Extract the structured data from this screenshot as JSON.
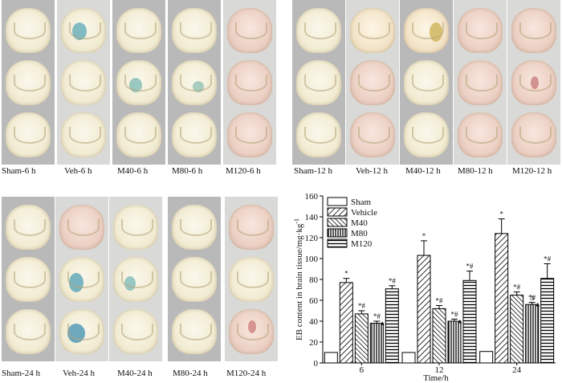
{
  "panels": {
    "top_left": {
      "captions": [
        "Sham-6 h",
        "Veh-6 h",
        "M40-6 h",
        "M80-6 h",
        "M120-6 h"
      ]
    },
    "top_right": {
      "captions": [
        "Sham-12 h",
        "Veh-12 h",
        "M40-12 h",
        "M80-12 h",
        "M120-12 h"
      ]
    },
    "bottom_left": {
      "captions": [
        "Sham-24 h",
        "Veh-24 h",
        "M40-24 h",
        "M80-24 h",
        "M120-24 h"
      ]
    }
  },
  "chart_data": {
    "type": "bar",
    "ylabel": "EB content in brain tissue/mg·kg",
    "ylabel_superscript": "-1",
    "xlabel": "Time/h",
    "categories": [
      "6",
      "12",
      "24"
    ],
    "ylim": [
      0,
      160
    ],
    "yticks": [
      0,
      20,
      40,
      60,
      80,
      100,
      120,
      140,
      160
    ],
    "series": [
      {
        "name": "Sham",
        "values": [
          10,
          10,
          11
        ],
        "errors": [
          0,
          0,
          0
        ],
        "annotations": [
          "",
          "",
          ""
        ]
      },
      {
        "name": "Vehicle",
        "values": [
          77,
          103,
          124
        ],
        "errors": [
          4,
          14,
          14
        ],
        "annotations": [
          "*",
          "*",
          "*"
        ]
      },
      {
        "name": "M40",
        "values": [
          47,
          52,
          65
        ],
        "errors": [
          3,
          3,
          3
        ],
        "annotations": [
          "*#",
          "*#",
          "*#"
        ]
      },
      {
        "name": "M80",
        "values": [
          38,
          40,
          56
        ],
        "errors": [
          2,
          2,
          2
        ],
        "annotations": [
          "*#",
          "*#",
          "*#"
        ]
      },
      {
        "name": "M120",
        "values": [
          71,
          79,
          81
        ],
        "errors": [
          3,
          9,
          14
        ],
        "annotations": [
          "*#",
          "*#",
          "*#"
        ]
      }
    ],
    "triangle_marks": [
      {
        "series": "M80",
        "category": "6",
        "mark": "▲"
      },
      {
        "series": "M80",
        "category": "12",
        "mark": "▲"
      },
      {
        "series": "M80",
        "category": "24",
        "mark": "▲"
      },
      {
        "series": "M80",
        "category": "24",
        "mark": "Δ"
      }
    ]
  }
}
